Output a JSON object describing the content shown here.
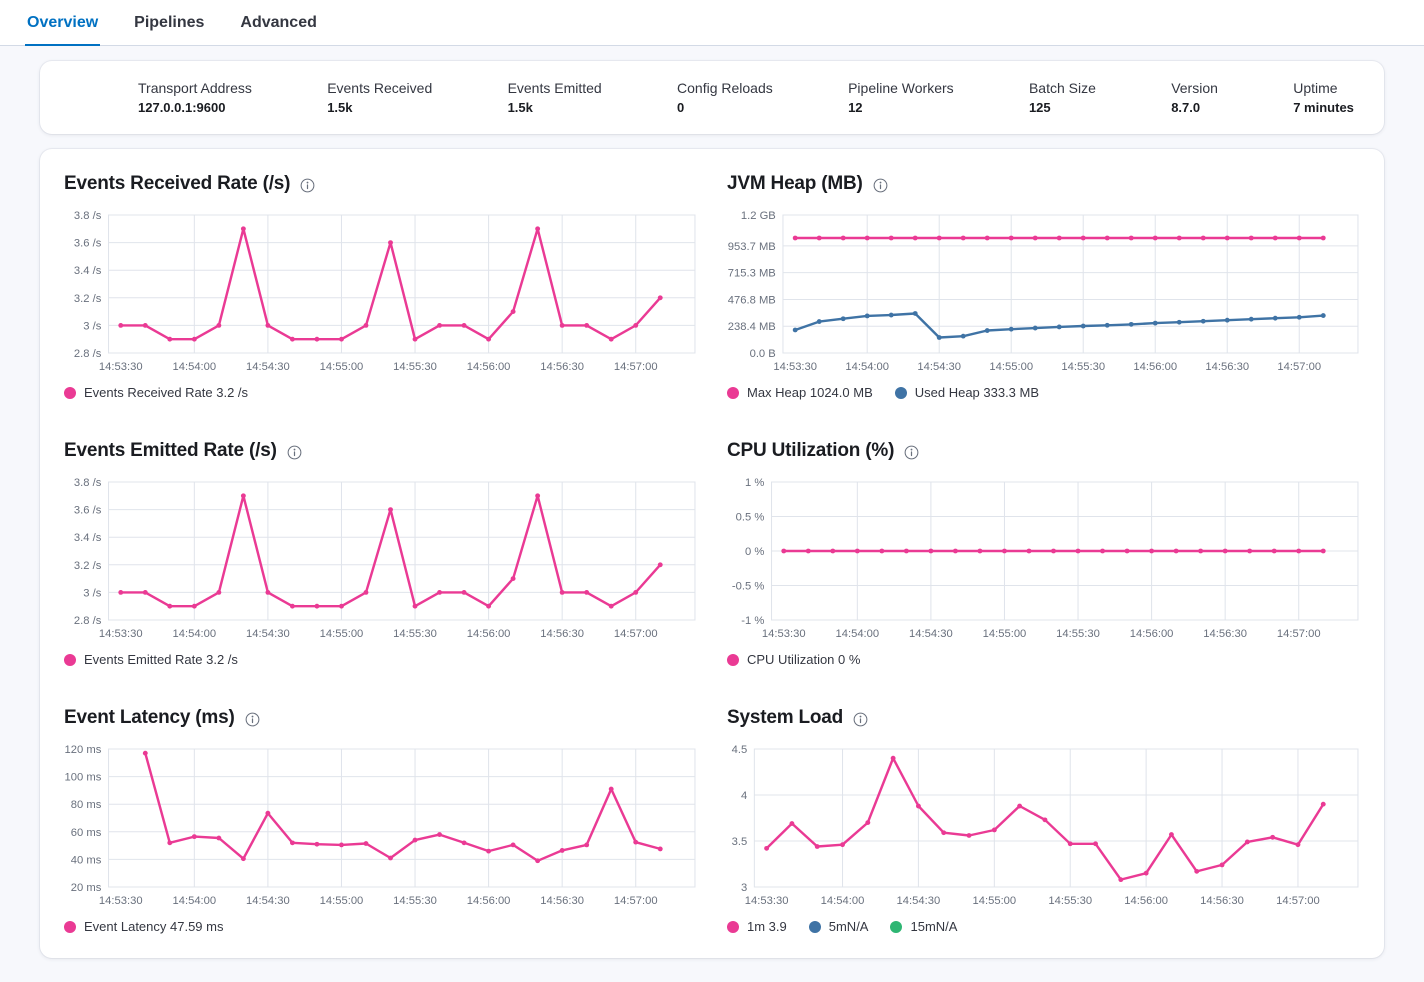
{
  "tabs": {
    "items": [
      {
        "label": "Overview",
        "active": true
      },
      {
        "label": "Pipelines",
        "active": false
      },
      {
        "label": "Advanced",
        "active": false
      }
    ]
  },
  "stats": {
    "items": [
      {
        "label": "Transport Address",
        "value": "127.0.0.1:9600"
      },
      {
        "label": "Events Received",
        "value": "1.5k"
      },
      {
        "label": "Events Emitted",
        "value": "1.5k"
      },
      {
        "label": "Config Reloads",
        "value": "0"
      },
      {
        "label": "Pipeline Workers",
        "value": "12"
      },
      {
        "label": "Batch Size",
        "value": "125"
      },
      {
        "label": "Version",
        "value": "8.7.0"
      },
      {
        "label": "Uptime",
        "value": "7 minutes"
      }
    ]
  },
  "colors": {
    "accent": "#0071c2",
    "pink": "#ea3a94",
    "blue": "#3f73a5",
    "green": "#2eb673",
    "text": "#1a1c21",
    "muted": "#69707d",
    "grid": "#e0e4eb"
  },
  "chart_data": {
    "x_categories": [
      "14:53:30",
      "14:53:40",
      "14:53:50",
      "14:54:00",
      "14:54:10",
      "14:54:20",
      "14:54:30",
      "14:54:40",
      "14:54:50",
      "14:55:00",
      "14:55:10",
      "14:55:20",
      "14:55:30",
      "14:55:40",
      "14:55:50",
      "14:56:00",
      "14:56:10",
      "14:56:20",
      "14:56:30",
      "14:56:40",
      "14:56:50",
      "14:57:00",
      "14:57:10"
    ],
    "x_tick_indices": [
      0,
      3,
      6,
      9,
      12,
      15,
      18,
      21
    ],
    "charts": [
      {
        "type": "line",
        "title": "Events Received Rate (/s)",
        "ylim": [
          2.8,
          3.8
        ],
        "ytick_labels": [
          "2.8 /s",
          "3 /s",
          "3.2 /s",
          "3.4 /s",
          "3.6 /s",
          "3.8 /s"
        ],
        "ytick_values": [
          2.8,
          3.0,
          3.2,
          3.4,
          3.6,
          3.8
        ],
        "series": [
          {
            "name": "Events Received Rate",
            "color": "#ea3a94",
            "start_index": 0,
            "values": [
              3.0,
              3.0,
              2.9,
              2.9,
              3.0,
              3.7,
              3.0,
              2.9,
              2.9,
              2.9,
              3.0,
              3.6,
              2.9,
              3.0,
              3.0,
              2.9,
              3.1,
              3.7,
              3.0,
              3.0,
              2.9,
              3.0,
              3.2
            ]
          }
        ],
        "legend": [
          {
            "color": "#ea3a94",
            "label": "Events Received Rate 3.2 /s"
          }
        ]
      },
      {
        "type": "line",
        "title": "JVM Heap (MB)",
        "ylim": [
          0,
          1228.8
        ],
        "ytick_labels": [
          "0.0 B",
          "238.4 MB",
          "476.8 MB",
          "715.3 MB",
          "953.7 MB",
          "1.2 GB"
        ],
        "ytick_values": [
          0,
          238.4,
          476.8,
          715.3,
          953.7,
          1228.8
        ],
        "series": [
          {
            "name": "Max Heap",
            "color": "#ea3a94",
            "start_index": 0,
            "values": [
              1024,
              1024,
              1024,
              1024,
              1024,
              1024,
              1024,
              1024,
              1024,
              1024,
              1024,
              1024,
              1024,
              1024,
              1024,
              1024,
              1024,
              1024,
              1024,
              1024,
              1024,
              1024,
              1024
            ]
          },
          {
            "name": "Used Heap",
            "color": "#3f73a5",
            "start_index": 0,
            "values": [
              205,
              280,
              305,
              330,
              338,
              352,
              138,
              150,
              200,
              212,
              222,
              232,
              240,
              247,
              255,
              266,
              274,
              283,
              292,
              301,
              310,
              318,
              333.3
            ]
          }
        ],
        "legend": [
          {
            "color": "#ea3a94",
            "label": "Max Heap 1024.0 MB"
          },
          {
            "color": "#3f73a5",
            "label": "Used Heap 333.3 MB"
          }
        ]
      },
      {
        "type": "line",
        "title": "Events Emitted Rate (/s)",
        "ylim": [
          2.8,
          3.8
        ],
        "ytick_labels": [
          "2.8 /s",
          "3 /s",
          "3.2 /s",
          "3.4 /s",
          "3.6 /s",
          "3.8 /s"
        ],
        "ytick_values": [
          2.8,
          3.0,
          3.2,
          3.4,
          3.6,
          3.8
        ],
        "series": [
          {
            "name": "Events Emitted Rate",
            "color": "#ea3a94",
            "start_index": 0,
            "values": [
              3.0,
              3.0,
              2.9,
              2.9,
              3.0,
              3.7,
              3.0,
              2.9,
              2.9,
              2.9,
              3.0,
              3.6,
              2.9,
              3.0,
              3.0,
              2.9,
              3.1,
              3.7,
              3.0,
              3.0,
              2.9,
              3.0,
              3.2
            ]
          }
        ],
        "legend": [
          {
            "color": "#ea3a94",
            "label": "Events Emitted Rate 3.2 /s"
          }
        ]
      },
      {
        "type": "line",
        "title": "CPU Utilization (%)",
        "ylim": [
          -1,
          1
        ],
        "ytick_labels": [
          "-1 %",
          "-0.5 %",
          "0 %",
          "0.5 %",
          "1 %"
        ],
        "ytick_values": [
          -1,
          -0.5,
          0,
          0.5,
          1
        ],
        "series": [
          {
            "name": "CPU Utilization",
            "color": "#ea3a94",
            "start_index": 0,
            "values": [
              0,
              0,
              0,
              0,
              0,
              0,
              0,
              0,
              0,
              0,
              0,
              0,
              0,
              0,
              0,
              0,
              0,
              0,
              0,
              0,
              0,
              0,
              0
            ]
          }
        ],
        "legend": [
          {
            "color": "#ea3a94",
            "label": "CPU Utilization 0 %"
          }
        ]
      },
      {
        "type": "line",
        "title": "Event Latency (ms)",
        "ylim": [
          20,
          120
        ],
        "ytick_labels": [
          "20 ms",
          "40 ms",
          "60 ms",
          "80 ms",
          "100 ms",
          "120 ms"
        ],
        "ytick_values": [
          20,
          40,
          60,
          80,
          100,
          120
        ],
        "series": [
          {
            "name": "Event Latency",
            "color": "#ea3a94",
            "start_index": 1,
            "values": [
              117,
              52,
              56.5,
              55.5,
              40.5,
              73.5,
              52,
              51,
              50.5,
              51.5,
              41,
              54,
              58,
              52,
              46,
              50.5,
              39,
              46.5,
              50.5,
              91,
              52.5,
              47.59
            ]
          }
        ],
        "legend": [
          {
            "color": "#ea3a94",
            "label": "Event Latency 47.59 ms"
          }
        ]
      },
      {
        "type": "line",
        "title": "System Load",
        "ylim": [
          3,
          4.5
        ],
        "ytick_labels": [
          "3",
          "3.5",
          "4",
          "4.5"
        ],
        "ytick_values": [
          3,
          3.5,
          4,
          4.5
        ],
        "series": [
          {
            "name": "1m",
            "color": "#ea3a94",
            "start_index": 0,
            "values": [
              3.42,
              3.69,
              3.44,
              3.46,
              3.7,
              4.4,
              3.88,
              3.59,
              3.56,
              3.62,
              3.88,
              3.73,
              3.47,
              3.47,
              3.08,
              3.15,
              3.57,
              3.17,
              3.24,
              3.49,
              3.54,
              3.46,
              3.9
            ]
          }
        ],
        "legend": [
          {
            "color": "#ea3a94",
            "label": "1m 3.9"
          },
          {
            "color": "#3f73a5",
            "label": "5mN/A"
          },
          {
            "color": "#2eb673",
            "label": "15mN/A"
          }
        ]
      }
    ]
  }
}
